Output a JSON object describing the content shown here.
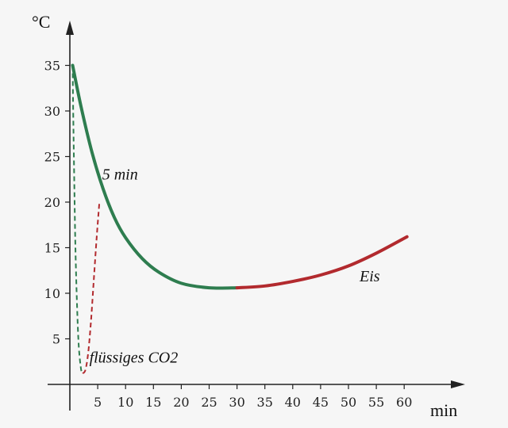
{
  "chart_data": {
    "type": "line",
    "title": "",
    "ylabel": "°C",
    "xlabel": "min",
    "xlim": [
      0,
      64
    ],
    "ylim": [
      0,
      38
    ],
    "x_ticks": [
      5,
      10,
      15,
      20,
      25,
      30,
      35,
      40,
      45,
      50,
      55,
      60
    ],
    "y_ticks": [
      5,
      10,
      15,
      20,
      25,
      30,
      35
    ],
    "grid": false,
    "series": [
      {
        "color": "#2e7d4f",
        "style": "solid",
        "x": [
          0.5,
          2,
          4,
          6,
          8,
          10,
          13,
          16,
          20,
          25,
          30
        ],
        "y": [
          35,
          30.5,
          25.4,
          21.4,
          18.3,
          16.1,
          13.8,
          12.3,
          11.1,
          10.6,
          10.6
        ]
      },
      {
        "color": "#b22a2e",
        "style": "solid",
        "x": [
          30,
          35,
          40,
          45,
          50,
          55,
          60.5
        ],
        "y": [
          10.6,
          10.8,
          11.3,
          12.0,
          13.0,
          14.4,
          16.2
        ]
      },
      {
        "color": "#2e7d4f",
        "style": "dashed",
        "x": [
          0.5,
          0.6,
          0.8,
          1.0,
          1.3,
          1.6,
          2.0,
          2.3
        ],
        "y": [
          35,
          30,
          22,
          15,
          8.5,
          4.2,
          1.7,
          1.2
        ]
      },
      {
        "color": "#b22a2e",
        "style": "dashed",
        "x": [
          2.3,
          2.8,
          3.3,
          3.8,
          4.3,
          4.8,
          5.3
        ],
        "y": [
          1.2,
          1.6,
          3.5,
          7.0,
          11.5,
          16.0,
          20.0
        ]
      }
    ],
    "annotations": [
      {
        "text": "5 min",
        "x": 5.8,
        "y": 22.5
      },
      {
        "text": "Eis",
        "x": 52,
        "y": 11.3
      },
      {
        "text": "flüssiges CO2",
        "x": 3.5,
        "y": 2.4
      }
    ]
  }
}
